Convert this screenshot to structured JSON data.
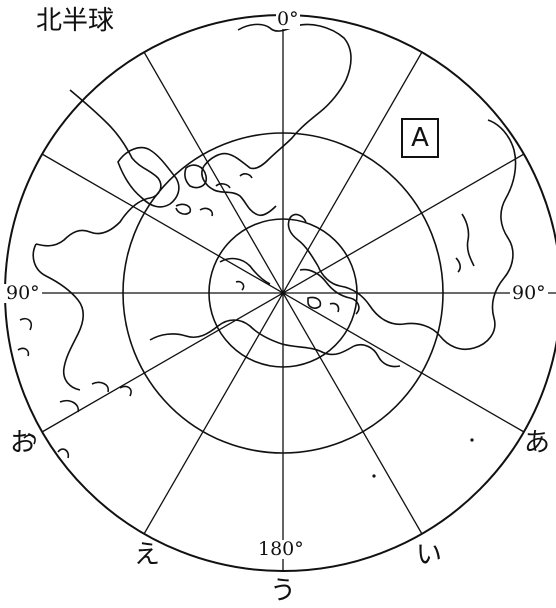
{
  "title": "北半球",
  "box_label": "A",
  "degree_labels": {
    "top": "0°",
    "left": "90°",
    "right": "90°",
    "bottom": "180°"
  },
  "line_labels": {
    "a": "あ",
    "i": "い",
    "u": "う",
    "e": "え",
    "o": "お"
  },
  "colors": {
    "ink": "#111111",
    "background": "#ffffff"
  }
}
